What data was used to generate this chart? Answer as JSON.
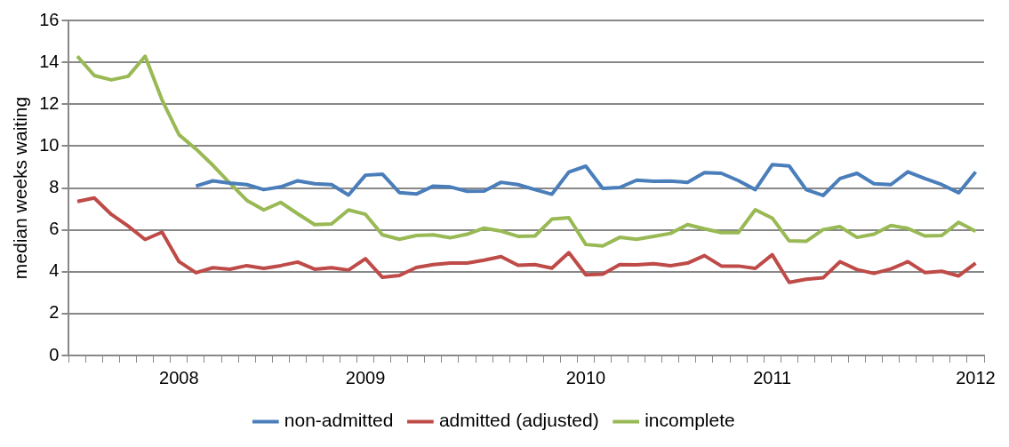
{
  "chart_data": {
    "type": "line",
    "ylabel": "median weeks waiting",
    "categories": [
      null,
      null,
      null,
      null,
      null,
      null,
      "2008",
      null,
      null,
      null,
      null,
      null,
      null,
      null,
      null,
      null,
      null,
      "2009",
      null,
      null,
      null,
      null,
      null,
      null,
      null,
      null,
      null,
      null,
      null,
      null,
      "2010",
      null,
      null,
      null,
      null,
      null,
      null,
      null,
      null,
      null,
      null,
      "2011",
      null,
      null,
      null,
      null,
      null,
      null,
      null,
      null,
      null,
      null,
      null,
      "2012"
    ],
    "series": [
      {
        "name": "non-admitted",
        "color": "#4a7ebb",
        "values": [
          null,
          null,
          null,
          null,
          null,
          null,
          null,
          8.09,
          8.34,
          8.23,
          8.16,
          7.92,
          8.05,
          8.34,
          8.2,
          8.16,
          7.66,
          8.61,
          8.66,
          7.78,
          7.71,
          8.09,
          8.05,
          7.84,
          7.85,
          8.27,
          8.16,
          7.92,
          7.7,
          8.76,
          9.04,
          7.98,
          8.02,
          8.37,
          8.32,
          8.33,
          8.27,
          8.73,
          8.7,
          8.35,
          7.92,
          9.11,
          9.05,
          7.92,
          7.64,
          8.45,
          8.7,
          8.2,
          8.16,
          8.77,
          8.45,
          8.16,
          7.77,
          8.76
        ]
      },
      {
        "name": "admitted (adjusted)",
        "color": "#be4b48",
        "values": [
          7.35,
          7.52,
          6.74,
          6.18,
          5.54,
          5.89,
          4.48,
          3.95,
          4.19,
          4.12,
          4.29,
          4.16,
          4.29,
          4.46,
          4.12,
          4.19,
          4.08,
          4.62,
          3.73,
          3.82,
          4.2,
          4.34,
          4.41,
          4.41,
          4.55,
          4.72,
          4.31,
          4.34,
          4.17,
          4.91,
          3.85,
          3.88,
          4.34,
          4.33,
          4.38,
          4.29,
          4.41,
          4.77,
          4.27,
          4.27,
          4.16,
          4.81,
          3.49,
          3.64,
          3.71,
          4.48,
          4.1,
          3.92,
          4.13,
          4.48,
          3.96,
          4.02,
          3.8,
          4.41
        ]
      },
      {
        "name": "incomplete",
        "color": "#98b954",
        "values": [
          14.29,
          13.37,
          13.16,
          13.33,
          14.29,
          12.2,
          10.54,
          9.86,
          9.08,
          8.23,
          7.41,
          6.95,
          7.31,
          6.77,
          6.25,
          6.28,
          6.95,
          6.74,
          5.76,
          5.55,
          5.73,
          5.76,
          5.62,
          5.79,
          6.08,
          5.94,
          5.69,
          5.71,
          6.51,
          6.58,
          5.3,
          5.23,
          5.64,
          5.55,
          5.69,
          5.83,
          6.25,
          6.05,
          5.87,
          5.87,
          6.96,
          6.56,
          5.47,
          5.45,
          6.01,
          6.15,
          5.64,
          5.79,
          6.21,
          6.07,
          5.71,
          5.73,
          6.36,
          5.93
        ]
      }
    ],
    "ylim": [
      0,
      16
    ],
    "yticks": [
      0,
      2,
      4,
      6,
      8,
      10,
      12,
      14,
      16
    ],
    "grid": "y",
    "legend": "bottom",
    "marker": "none",
    "line_style": "solid"
  }
}
